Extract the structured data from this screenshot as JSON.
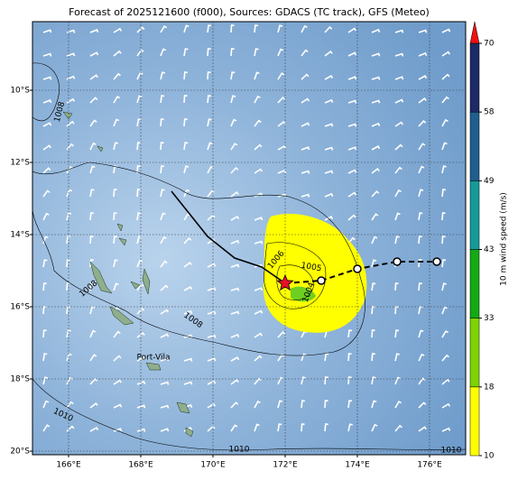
{
  "title": "Forecast of 2025121600 (f000), Sources: GDACS (TC track), GFS (Meteo)",
  "map": {
    "xlim": [
      165,
      177
    ],
    "ylim": [
      -20.1,
      -8.1
    ],
    "xticks": [
      {
        "value": 166,
        "label": "166°E"
      },
      {
        "value": 168,
        "label": "168°E"
      },
      {
        "value": 170,
        "label": "170°E"
      },
      {
        "value": 172,
        "label": "172°E"
      },
      {
        "value": 174,
        "label": "174°E"
      },
      {
        "value": 176,
        "label": "176°E"
      }
    ],
    "yticks": [
      {
        "value": -10,
        "label": "10°S"
      },
      {
        "value": -12,
        "label": "12°S"
      },
      {
        "value": -14,
        "label": "14°S"
      },
      {
        "value": -16,
        "label": "16°S"
      },
      {
        "value": -18,
        "label": "18°S"
      },
      {
        "value": -20,
        "label": "20°S"
      }
    ],
    "grid": true,
    "track": {
      "lon": [
        172.0,
        173.0,
        174.0,
        175.1,
        176.2
      ],
      "lat": [
        -15.35,
        -15.275,
        -14.95,
        -14.75,
        -14.75
      ]
    },
    "contour_labels": [
      "1008",
      "1008",
      "1008",
      "1006",
      "1005",
      "1004",
      "1010",
      "1010",
      "1010"
    ],
    "places": [
      "Port-Vila"
    ]
  },
  "colorbar": {
    "label": "10 m wind speed (m/s)",
    "ticks": [
      10,
      18,
      33,
      43,
      49,
      58,
      70
    ],
    "colors": [
      "#ffff00",
      "#7fd400",
      "#14aa14",
      "#159a9a",
      "#1f5f8f",
      "#1c2b66"
    ],
    "extend_color": "#ee1111"
  }
}
